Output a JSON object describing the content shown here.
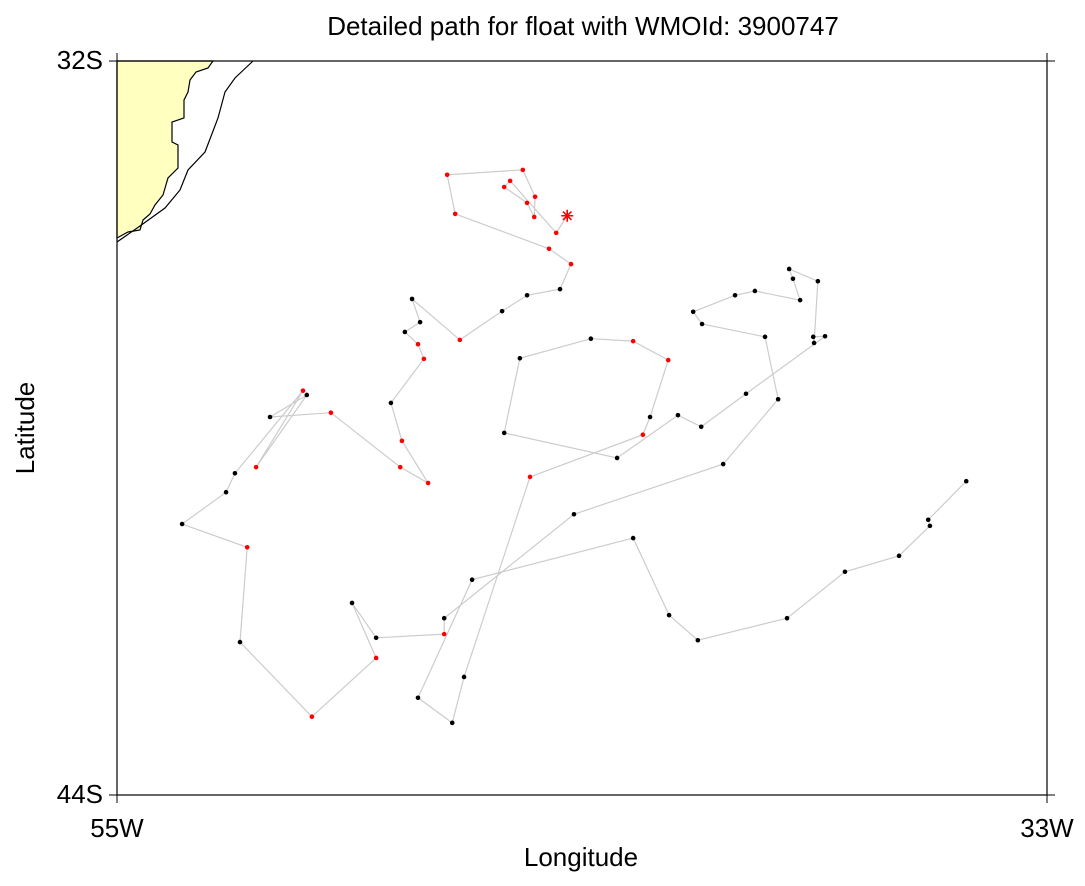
{
  "chart_data": {
    "type": "line",
    "title": "Detailed path for float with WMOId: 3900747",
    "xlabel": "Longitude",
    "ylabel": "Latitude",
    "xlim": [
      -55,
      -33
    ],
    "ylim": [
      -44,
      -32
    ],
    "xticks": [
      {
        "value": -55,
        "label": "55W"
      },
      {
        "value": -33,
        "label": "33W"
      }
    ],
    "yticks": [
      {
        "value": -44,
        "label": "44S"
      },
      {
        "value": -32,
        "label": "32S"
      }
    ],
    "line_color": "#cccccc",
    "last_marker": "star",
    "x": [
      -34.91,
      -35.81,
      -35.77,
      -36.5,
      -37.78,
      -39.15,
      -41.26,
      -41.94,
      -42.79,
      -46.6,
      -47.88,
      -47.07,
      -46.79,
      -45.23,
      -42.56,
      -42.39,
      -41.96,
      -42.79,
      -43.79,
      -45.47,
      -45.84,
      -43.17,
      -41.73,
      -41.18,
      -40.12,
      -38.25,
      -38.53,
      -38.51,
      -38.42,
      -39.1,
      -39.01,
      -38.84,
      -39.91,
      -40.38,
      -41.37,
      -41.16,
      -39.67,
      -39.36,
      -40.66,
      -44.19,
      -47.26,
      -47.26,
      -48.87,
      -49.44,
      -48.87,
      -50.39,
      -52.09,
      -51.92,
      -53.46,
      -52.42,
      -52.21,
      -50.6,
      -51.71,
      -50.51,
      -51.38,
      -49.94,
      -48.3,
      -47.64,
      -48.26,
      -48.52,
      -47.74,
      -47.88,
      -48.19,
      -47.83,
      -48.02,
      -46.89,
      -45.89,
      -45.3,
      -44.52,
      -44.26,
      -44.78,
      -47.0,
      -47.19,
      -45.4,
      -45.11,
      -45.13,
      -45.3,
      -45.84,
      -45.7,
      -44.61,
      -44.35
    ],
    "y": [
      -38.87,
      -39.5,
      -39.6,
      -40.09,
      -40.35,
      -41.11,
      -41.47,
      -41.06,
      -39.8,
      -40.48,
      -42.41,
      -42.82,
      -42.07,
      -38.8,
      -38.11,
      -37.82,
      -36.89,
      -36.58,
      -36.54,
      -36.86,
      -38.08,
      -38.49,
      -37.79,
      -37.98,
      -37.44,
      -36.5,
      -36.51,
      -36.61,
      -35.6,
      -35.4,
      -35.56,
      -35.91,
      -35.76,
      -35.83,
      -36.1,
      -36.3,
      -36.51,
      -37.53,
      -38.59,
      -39.41,
      -41.11,
      -41.37,
      -41.43,
      -40.86,
      -41.76,
      -42.72,
      -41.5,
      -39.95,
      -39.57,
      -39.05,
      -38.74,
      -37.39,
      -38.64,
      -37.46,
      -37.82,
      -37.75,
      -38.64,
      -38.9,
      -38.21,
      -37.59,
      -36.87,
      -36.63,
      -36.43,
      -36.27,
      -35.89,
      -36.56,
      -36.09,
      -35.83,
      -35.73,
      -35.32,
      -35.07,
      -34.5,
      -33.86,
      -33.78,
      -34.22,
      -34.55,
      -34.32,
      -34.06,
      -33.96,
      -34.81,
      -34.53
    ],
    "marker_colors": [
      "black",
      "black",
      "black",
      "black",
      "black",
      "black",
      "black",
      "black",
      "black",
      "black",
      "black",
      "black",
      "black",
      "red",
      "red",
      "black",
      "red",
      "red",
      "black",
      "black",
      "black",
      "black",
      "black",
      "black",
      "black",
      "black",
      "black",
      "black",
      "black",
      "black",
      "black",
      "black",
      "black",
      "black",
      "black",
      "black",
      "black",
      "black",
      "black",
      "black",
      "black",
      "red",
      "black",
      "black",
      "red",
      "red",
      "black",
      "red",
      "black",
      "black",
      "black",
      "red",
      "red",
      "black",
      "black",
      "red",
      "red",
      "red",
      "red",
      "black",
      "red",
      "red",
      "black",
      "black",
      "black",
      "red",
      "black",
      "black",
      "black",
      "red",
      "red",
      "red",
      "red",
      "red",
      "red",
      "red",
      "red",
      "red",
      "red",
      "red",
      "red"
    ]
  }
}
